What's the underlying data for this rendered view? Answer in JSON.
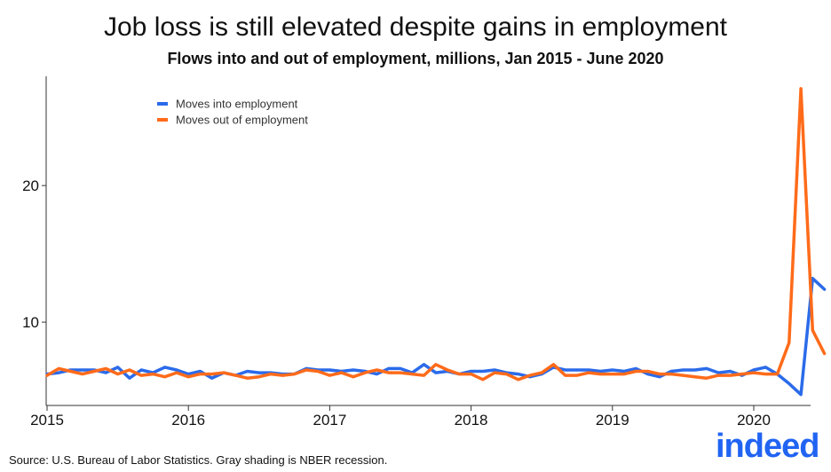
{
  "chart_data": {
    "type": "line",
    "title": "Job loss is still elevated despite gains in employment",
    "subtitle": "Flows into and out of employment, millions, Jan 2015 - June 2020",
    "xlabel": "",
    "ylabel": "",
    "x_tick_labels": [
      "2015",
      "2016",
      "2017",
      "2018",
      "2019",
      "2020"
    ],
    "y_tick_labels": [
      "10",
      "20"
    ],
    "y_ticks": [
      10,
      20
    ],
    "ylim": [
      3.9,
      28
    ],
    "x_start": "2015-01",
    "x_end": "2020-06",
    "legend_position": "top-left",
    "grid": false,
    "series": [
      {
        "name": "Moves into employment",
        "color": "#2b6bea",
        "values": [
          6.2,
          6.3,
          6.5,
          6.5,
          6.5,
          6.3,
          6.7,
          5.9,
          6.5,
          6.3,
          6.7,
          6.5,
          6.2,
          6.4,
          5.9,
          6.3,
          6.1,
          6.4,
          6.3,
          6.3,
          6.2,
          6.2,
          6.6,
          6.5,
          6.5,
          6.4,
          6.5,
          6.4,
          6.2,
          6.6,
          6.6,
          6.3,
          6.9,
          6.3,
          6.4,
          6.2,
          6.4,
          6.4,
          6.5,
          6.3,
          6.2,
          6.0,
          6.2,
          6.7,
          6.5,
          6.5,
          6.5,
          6.4,
          6.5,
          6.4,
          6.6,
          6.2,
          6.0,
          6.4,
          6.5,
          6.5,
          6.6,
          6.3,
          6.4,
          6.1,
          6.5,
          6.7,
          6.2,
          5.5,
          4.7,
          13.2,
          12.4
        ]
      },
      {
        "name": "Moves out of employment",
        "color": "#ff6b1a",
        "values": [
          6.1,
          6.6,
          6.4,
          6.2,
          6.4,
          6.6,
          6.2,
          6.5,
          6.1,
          6.2,
          6.0,
          6.3,
          6.0,
          6.2,
          6.2,
          6.3,
          6.1,
          5.9,
          6.0,
          6.2,
          6.1,
          6.2,
          6.5,
          6.4,
          6.1,
          6.3,
          6.0,
          6.3,
          6.5,
          6.3,
          6.3,
          6.2,
          6.1,
          6.9,
          6.5,
          6.2,
          6.2,
          5.8,
          6.3,
          6.2,
          5.8,
          6.1,
          6.3,
          6.9,
          6.1,
          6.1,
          6.3,
          6.2,
          6.2,
          6.2,
          6.4,
          6.4,
          6.2,
          6.2,
          6.1,
          6.0,
          5.9,
          6.1,
          6.1,
          6.2,
          6.3,
          6.2,
          6.2,
          8.5,
          27.1,
          9.4,
          7.7
        ]
      }
    ]
  },
  "footer": {
    "source": "Source: U.S. Bureau of Labor Statistics. Gray shading is NBER recession.",
    "logo": "indeed"
  }
}
